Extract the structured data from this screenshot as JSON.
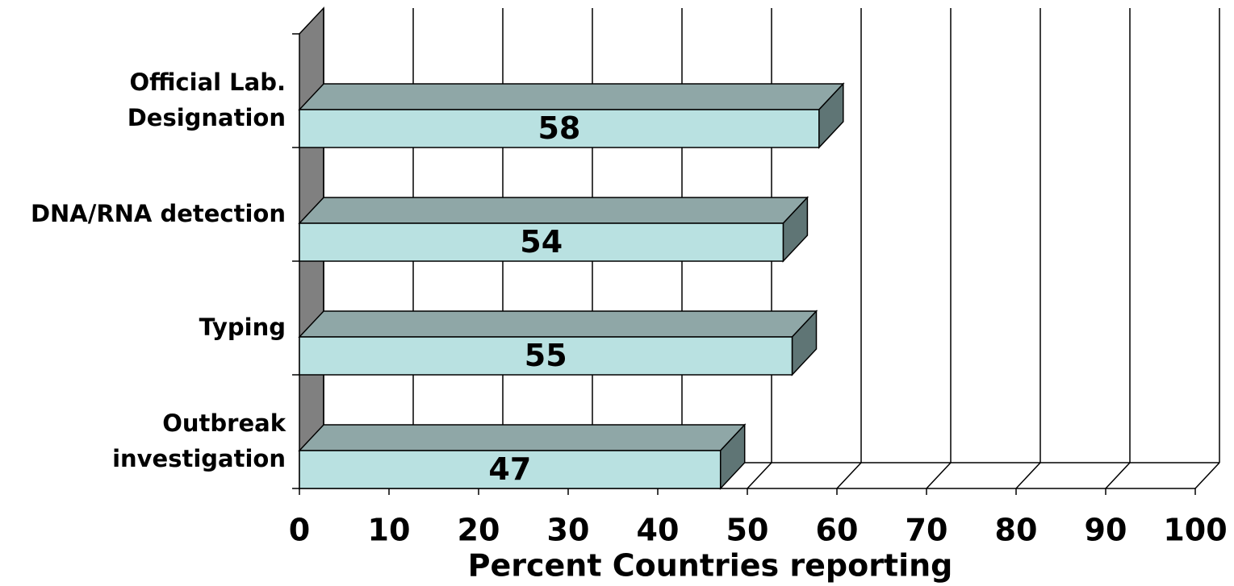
{
  "chart_data": {
    "type": "bar3d",
    "xlabel": "Percent Countries reporting",
    "categories": [
      [
        "Official Lab.",
        "Designation"
      ],
      [
        "DNA/RNA detection"
      ],
      [
        "Typing"
      ],
      [
        "Outbreak",
        "investigation"
      ]
    ],
    "values": [
      58,
      54,
      55,
      47
    ],
    "colors": {
      "front": "#b9e1e1",
      "top": "#8fa7a7",
      "side": "#5f7575",
      "wall": "#808080"
    },
    "xlim": [
      0,
      100
    ],
    "xticks": [
      0,
      10,
      20,
      30,
      40,
      50,
      60,
      70,
      80,
      90,
      100
    ],
    "grid": true
  }
}
